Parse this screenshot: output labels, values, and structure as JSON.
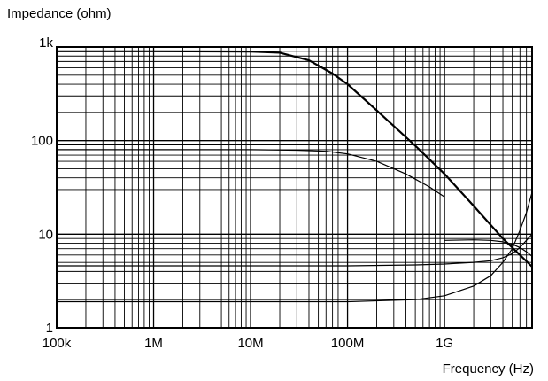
{
  "chart_data": {
    "type": "line",
    "title": "",
    "ylabel": "Impedance (ohm)",
    "xlabel": "Frequency (Hz)",
    "x_scale": "log",
    "y_scale": "log",
    "xlim": [
      100000,
      8000000000
    ],
    "ylim": [
      1,
      1000
    ],
    "grid": true,
    "x_ticks": [
      {
        "value": 100000,
        "label": "100k"
      },
      {
        "value": 1000000,
        "label": "1M"
      },
      {
        "value": 10000000,
        "label": "10M"
      },
      {
        "value": 100000000,
        "label": "100M"
      },
      {
        "value": 1000000000,
        "label": "1G"
      }
    ],
    "y_ticks": [
      {
        "value": 1,
        "label": "1"
      },
      {
        "value": 10,
        "label": "10"
      },
      {
        "value": 100,
        "label": "100"
      },
      {
        "value": 1000,
        "label": "1k"
      }
    ],
    "series": [
      {
        "x": [
          100000,
          1000000,
          10000000,
          20000000,
          40000000,
          70000000,
          100000000,
          200000000,
          500000000,
          1000000000,
          2000000000,
          4000000000,
          8000000000
        ],
        "y": [
          900,
          900,
          895,
          870,
          720,
          520,
          400,
          210,
          88,
          44,
          20,
          9,
          4.5
        ]
      },
      {
        "x": [
          100000,
          1000000,
          10000000,
          30000000,
          60000000,
          100000000,
          200000000,
          400000000,
          700000000,
          1000000000
        ],
        "y": [
          80,
          80,
          80,
          79,
          77,
          72,
          60,
          44,
          32,
          25
        ]
      },
      {
        "x": [
          1000000000,
          2000000000,
          3000000000,
          4000000000,
          5000000000,
          6000000000,
          7000000000,
          8000000000
        ],
        "y": [
          8.6,
          8.7,
          8.6,
          8.3,
          7.8,
          7.2,
          6.5,
          5.8
        ]
      },
      {
        "x": [
          100000,
          1000000,
          10000000,
          100000000,
          500000000,
          1000000000,
          2000000000,
          3000000000,
          4000000000,
          5000000000,
          6000000000,
          7000000000,
          8000000000
        ],
        "y": [
          4.6,
          4.6,
          4.6,
          4.6,
          4.7,
          4.8,
          5.0,
          5.2,
          5.6,
          6.2,
          7.2,
          8.6,
          10
        ]
      },
      {
        "x": [
          100000,
          1000000,
          10000000,
          100000000,
          500000000,
          1000000000,
          2000000000,
          3000000000,
          4000000000,
          5000000000,
          6000000000,
          7000000000,
          8000000000
        ],
        "y": [
          1.9,
          1.9,
          1.9,
          1.9,
          2.0,
          2.2,
          2.8,
          3.6,
          5.0,
          7.0,
          11,
          17,
          28
        ]
      }
    ]
  }
}
